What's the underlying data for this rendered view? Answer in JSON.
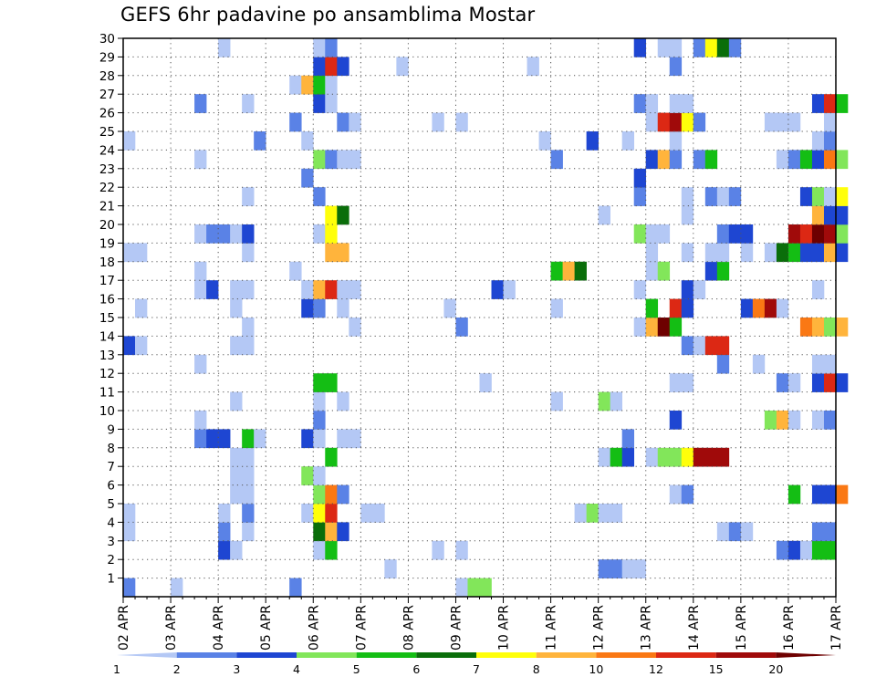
{
  "chart_data": {
    "type": "heatmap",
    "title": "GEFS 6hr padavine po ansamblima Mostar",
    "x": {
      "ticks": [
        "02 APR",
        "03 APR",
        "04 APR",
        "05 APR",
        "06 APR",
        "07 APR",
        "08 APR",
        "09 APR",
        "10 APR",
        "11 APR",
        "12 APR",
        "13 APR",
        "14 APR",
        "15 APR",
        "16 APR",
        "17 APR"
      ],
      "range": [
        "02 APR 00Z",
        "17 APR 00Z"
      ],
      "step": "6hr"
    },
    "y": {
      "ticks": [
        1,
        2,
        3,
        4,
        5,
        6,
        7,
        8,
        9,
        10,
        11,
        12,
        13,
        14,
        15,
        16,
        17,
        18,
        19,
        20,
        21,
        22,
        23,
        24,
        25,
        26,
        27,
        28,
        29,
        30
      ],
      "label": "",
      "range": [
        0,
        30
      ]
    },
    "grid": "dotted",
    "legend": {
      "placement": "bottom",
      "labels": [
        "1",
        "2",
        "3",
        "4",
        "5",
        "6",
        "7",
        "8",
        "10",
        "12",
        "15",
        "20"
      ],
      "colors": [
        "#b4c8f5",
        "#5a82e6",
        "#1e46d2",
        "#82e65a",
        "#14be14",
        "#0a6e0a",
        "#ffff0a",
        "#ffb43c",
        "#fa7814",
        "#dc2814",
        "#a00a0a",
        "#6e0000"
      ]
    },
    "cells": [
      [
        0,
        0,
        "#5a82e6"
      ],
      [
        4,
        0,
        "#b4c8f5"
      ],
      [
        14,
        0,
        "#b4c8f5"
      ],
      [
        14,
        0,
        "#5a82e6"
      ],
      [
        28,
        0,
        "#b4c8f5"
      ],
      [
        29,
        0,
        "#82e65a"
      ],
      [
        30,
        0,
        "#82e65a"
      ],
      [
        22,
        1,
        "#b4c8f5"
      ],
      [
        40,
        1,
        "#5a82e6"
      ],
      [
        41,
        1,
        "#5a82e6"
      ],
      [
        42,
        1,
        "#b4c8f5"
      ],
      [
        43,
        1,
        "#b4c8f5"
      ],
      [
        8,
        2,
        "#b4c8f5"
      ],
      [
        8,
        2,
        "#1e46d2"
      ],
      [
        9,
        2,
        "#b4c8f5"
      ],
      [
        16,
        2,
        "#b4c8f5"
      ],
      [
        17,
        2,
        "#14be14"
      ],
      [
        26,
        2,
        "#b4c8f5"
      ],
      [
        28,
        2,
        "#b4c8f5"
      ],
      [
        55,
        2,
        "#5a82e6"
      ],
      [
        56,
        2,
        "#1e46d2"
      ],
      [
        57,
        2,
        "#b4c8f5"
      ],
      [
        58,
        2,
        "#14be14"
      ],
      [
        59,
        2,
        "#14be14"
      ],
      [
        0,
        3,
        "#b4c8f5"
      ],
      [
        8,
        3,
        "#5a82e6"
      ],
      [
        10,
        3,
        "#b4c8f5"
      ],
      [
        16,
        3,
        "#0a6e0a"
      ],
      [
        17,
        3,
        "#ffb43c"
      ],
      [
        18,
        3,
        "#1e46d2"
      ],
      [
        50,
        3,
        "#b4c8f5"
      ],
      [
        51,
        3,
        "#5a82e6"
      ],
      [
        52,
        3,
        "#b4c8f5"
      ],
      [
        58,
        3,
        "#5a82e6"
      ],
      [
        59,
        3,
        "#5a82e6"
      ],
      [
        0,
        4,
        "#b4c8f5"
      ],
      [
        8,
        4,
        "#b4c8f5"
      ],
      [
        10,
        4,
        "#5a82e6"
      ],
      [
        15,
        4,
        "#b4c8f5"
      ],
      [
        16,
        4,
        "#ffff0a"
      ],
      [
        17,
        4,
        "#dc2814"
      ],
      [
        20,
        4,
        "#b4c8f5"
      ],
      [
        21,
        4,
        "#b4c8f5"
      ],
      [
        38,
        4,
        "#b4c8f5"
      ],
      [
        39,
        4,
        "#82e65a"
      ],
      [
        40,
        4,
        "#b4c8f5"
      ],
      [
        41,
        4,
        "#b4c8f5"
      ],
      [
        9,
        5,
        "#b4c8f5"
      ],
      [
        10,
        5,
        "#b4c8f5"
      ],
      [
        16,
        5,
        "#82e65a"
      ],
      [
        17,
        5,
        "#fa7814"
      ],
      [
        18,
        5,
        "#5a82e6"
      ],
      [
        46,
        5,
        "#b4c8f5"
      ],
      [
        47,
        5,
        "#5a82e6"
      ],
      [
        56,
        5,
        "#14be14"
      ],
      [
        58,
        5,
        "#1e46d2"
      ],
      [
        59,
        5,
        "#1e46d2"
      ],
      [
        60,
        5,
        "#fa7814"
      ],
      [
        9,
        6,
        "#b4c8f5"
      ],
      [
        10,
        6,
        "#b4c8f5"
      ],
      [
        15,
        6,
        "#82e65a"
      ],
      [
        16,
        6,
        "#b4c8f5"
      ],
      [
        9,
        7,
        "#b4c8f5"
      ],
      [
        10,
        7,
        "#b4c8f5"
      ],
      [
        17,
        7,
        "#14be14"
      ],
      [
        40,
        7,
        "#b4c8f5"
      ],
      [
        41,
        7,
        "#14be14"
      ],
      [
        42,
        7,
        "#1e46d2"
      ],
      [
        44,
        7,
        "#b4c8f5"
      ],
      [
        45,
        7,
        "#82e65a"
      ],
      [
        46,
        7,
        "#82e65a"
      ],
      [
        47,
        7,
        "#ffff0a"
      ],
      [
        48,
        7,
        "#a00a0a"
      ],
      [
        49,
        7,
        "#a00a0a"
      ],
      [
        50,
        7,
        "#a00a0a"
      ],
      [
        6,
        8,
        "#5a82e6"
      ],
      [
        7,
        8,
        "#1e46d2"
      ],
      [
        8,
        8,
        "#1e46d2"
      ],
      [
        10,
        8,
        "#14be14"
      ],
      [
        11,
        8,
        "#b4c8f5"
      ],
      [
        15,
        8,
        "#1e46d2"
      ],
      [
        16,
        8,
        "#b4c8f5"
      ],
      [
        18,
        8,
        "#b4c8f5"
      ],
      [
        19,
        8,
        "#b4c8f5"
      ],
      [
        42,
        8,
        "#5a82e6"
      ],
      [
        6,
        9,
        "#b4c8f5"
      ],
      [
        16,
        9,
        "#5a82e6"
      ],
      [
        46,
        9,
        "#1e46d2"
      ],
      [
        54,
        9,
        "#82e65a"
      ],
      [
        55,
        9,
        "#ffb43c"
      ],
      [
        56,
        9,
        "#b4c8f5"
      ],
      [
        58,
        9,
        "#b4c8f5"
      ],
      [
        59,
        9,
        "#5a82e6"
      ],
      [
        9,
        10,
        "#b4c8f5"
      ],
      [
        16,
        10,
        "#b4c8f5"
      ],
      [
        18,
        10,
        "#b4c8f5"
      ],
      [
        36,
        10,
        "#b4c8f5"
      ],
      [
        40,
        10,
        "#82e65a"
      ],
      [
        41,
        10,
        "#b4c8f5"
      ],
      [
        16,
        11,
        "#14be14"
      ],
      [
        17,
        11,
        "#14be14"
      ],
      [
        30,
        11,
        "#b4c8f5"
      ],
      [
        46,
        11,
        "#b4c8f5"
      ],
      [
        47,
        11,
        "#b4c8f5"
      ],
      [
        55,
        11,
        "#5a82e6"
      ],
      [
        56,
        11,
        "#b4c8f5"
      ],
      [
        58,
        11,
        "#1e46d2"
      ],
      [
        59,
        11,
        "#dc2814"
      ],
      [
        60,
        11,
        "#1e46d2"
      ],
      [
        6,
        12,
        "#b4c8f5"
      ],
      [
        50,
        12,
        "#5a82e6"
      ],
      [
        53,
        12,
        "#b4c8f5"
      ],
      [
        58,
        12,
        "#b4c8f5"
      ],
      [
        59,
        12,
        "#b4c8f5"
      ],
      [
        0,
        13,
        "#1e46d2"
      ],
      [
        1,
        13,
        "#b4c8f5"
      ],
      [
        9,
        13,
        "#b4c8f5"
      ],
      [
        10,
        13,
        "#b4c8f5"
      ],
      [
        47,
        13,
        "#5a82e6"
      ],
      [
        48,
        13,
        "#b4c8f5"
      ],
      [
        49,
        13,
        "#dc2814"
      ],
      [
        50,
        13,
        "#dc2814"
      ],
      [
        10,
        14,
        "#b4c8f5"
      ],
      [
        19,
        14,
        "#b4c8f5"
      ],
      [
        28,
        14,
        "#5a82e6"
      ],
      [
        43,
        14,
        "#b4c8f5"
      ],
      [
        44,
        14,
        "#ffb43c"
      ],
      [
        45,
        14,
        "#6e0000"
      ],
      [
        46,
        14,
        "#14be14"
      ],
      [
        57,
        14,
        "#fa7814"
      ],
      [
        58,
        14,
        "#ffb43c"
      ],
      [
        59,
        14,
        "#82e65a"
      ],
      [
        60,
        14,
        "#ffb43c"
      ],
      [
        1,
        15,
        "#b4c8f5"
      ],
      [
        9,
        15,
        "#b4c8f5"
      ],
      [
        15,
        15,
        "#1e46d2"
      ],
      [
        16,
        15,
        "#5a82e6"
      ],
      [
        18,
        15,
        "#b4c8f5"
      ],
      [
        27,
        15,
        "#b4c8f5"
      ],
      [
        36,
        15,
        "#b4c8f5"
      ],
      [
        44,
        15,
        "#14be14"
      ],
      [
        46,
        15,
        "#dc2814"
      ],
      [
        47,
        15,
        "#1e46d2"
      ],
      [
        52,
        15,
        "#1e46d2"
      ],
      [
        53,
        15,
        "#fa7814"
      ],
      [
        54,
        15,
        "#a00a0a"
      ],
      [
        55,
        15,
        "#b4c8f5"
      ],
      [
        6,
        16,
        "#b4c8f5"
      ],
      [
        7,
        16,
        "#1e46d2"
      ],
      [
        9,
        16,
        "#b4c8f5"
      ],
      [
        10,
        16,
        "#b4c8f5"
      ],
      [
        15,
        16,
        "#b4c8f5"
      ],
      [
        16,
        16,
        "#ffb43c"
      ],
      [
        17,
        16,
        "#dc2814"
      ],
      [
        18,
        16,
        "#b4c8f5"
      ],
      [
        19,
        16,
        "#b4c8f5"
      ],
      [
        31,
        16,
        "#1e46d2"
      ],
      [
        32,
        16,
        "#b4c8f5"
      ],
      [
        43,
        16,
        "#b4c8f5"
      ],
      [
        47,
        16,
        "#1e46d2"
      ],
      [
        48,
        16,
        "#b4c8f5"
      ],
      [
        58,
        16,
        "#b4c8f5"
      ],
      [
        6,
        17,
        "#b4c8f5"
      ],
      [
        14,
        17,
        "#b4c8f5"
      ],
      [
        36,
        17,
        "#14be14"
      ],
      [
        37,
        17,
        "#ffb43c"
      ],
      [
        38,
        17,
        "#0a6e0a"
      ],
      [
        44,
        17,
        "#b4c8f5"
      ],
      [
        45,
        17,
        "#82e65a"
      ],
      [
        49,
        17,
        "#1e46d2"
      ],
      [
        50,
        17,
        "#14be14"
      ],
      [
        0,
        18,
        "#b4c8f5"
      ],
      [
        1,
        18,
        "#b4c8f5"
      ],
      [
        10,
        18,
        "#b4c8f5"
      ],
      [
        17,
        18,
        "#ffb43c"
      ],
      [
        18,
        18,
        "#ffb43c"
      ],
      [
        44,
        18,
        "#b4c8f5"
      ],
      [
        47,
        18,
        "#b4c8f5"
      ],
      [
        49,
        18,
        "#b4c8f5"
      ],
      [
        50,
        18,
        "#b4c8f5"
      ],
      [
        52,
        18,
        "#b4c8f5"
      ],
      [
        54,
        18,
        "#b4c8f5"
      ],
      [
        55,
        18,
        "#0a6e0a"
      ],
      [
        56,
        18,
        "#14be14"
      ],
      [
        57,
        18,
        "#1e46d2"
      ],
      [
        58,
        18,
        "#1e46d2"
      ],
      [
        59,
        18,
        "#ffb43c"
      ],
      [
        60,
        18,
        "#1e46d2"
      ],
      [
        6,
        19,
        "#b4c8f5"
      ],
      [
        7,
        19,
        "#5a82e6"
      ],
      [
        8,
        19,
        "#5a82e6"
      ],
      [
        9,
        19,
        "#b4c8f5"
      ],
      [
        10,
        19,
        "#1e46d2"
      ],
      [
        16,
        19,
        "#b4c8f5"
      ],
      [
        17,
        19,
        "#ffff0a"
      ],
      [
        43,
        19,
        "#82e65a"
      ],
      [
        44,
        19,
        "#b4c8f5"
      ],
      [
        45,
        19,
        "#b4c8f5"
      ],
      [
        50,
        19,
        "#5a82e6"
      ],
      [
        51,
        19,
        "#1e46d2"
      ],
      [
        52,
        19,
        "#1e46d2"
      ],
      [
        56,
        19,
        "#a00a0a"
      ],
      [
        57,
        19,
        "#dc2814"
      ],
      [
        58,
        19,
        "#6e0000"
      ],
      [
        59,
        19,
        "#a00a0a"
      ],
      [
        60,
        19,
        "#82e65a"
      ],
      [
        17,
        20,
        "#ffff0a"
      ],
      [
        18,
        20,
        "#0a6e0a"
      ],
      [
        40,
        20,
        "#b4c8f5"
      ],
      [
        47,
        20,
        "#b4c8f5"
      ],
      [
        58,
        20,
        "#ffb43c"
      ],
      [
        59,
        20,
        "#1e46d2"
      ],
      [
        60,
        20,
        "#1e46d2"
      ],
      [
        10,
        21,
        "#b4c8f5"
      ],
      [
        16,
        21,
        "#5a82e6"
      ],
      [
        43,
        21,
        "#5a82e6"
      ],
      [
        47,
        21,
        "#b4c8f5"
      ],
      [
        49,
        21,
        "#5a82e6"
      ],
      [
        50,
        21,
        "#b4c8f5"
      ],
      [
        51,
        21,
        "#5a82e6"
      ],
      [
        57,
        21,
        "#1e46d2"
      ],
      [
        58,
        21,
        "#82e65a"
      ],
      [
        59,
        21,
        "#b4c8f5"
      ],
      [
        60,
        21,
        "#ffff0a"
      ],
      [
        15,
        22,
        "#5a82e6"
      ],
      [
        43,
        22,
        "#1e46d2"
      ],
      [
        6,
        23,
        "#b4c8f5"
      ],
      [
        16,
        23,
        "#82e65a"
      ],
      [
        17,
        23,
        "#5a82e6"
      ],
      [
        18,
        23,
        "#b4c8f5"
      ],
      [
        19,
        23,
        "#b4c8f5"
      ],
      [
        36,
        23,
        "#5a82e6"
      ],
      [
        44,
        23,
        "#1e46d2"
      ],
      [
        45,
        23,
        "#ffb43c"
      ],
      [
        46,
        23,
        "#5a82e6"
      ],
      [
        48,
        23,
        "#5a82e6"
      ],
      [
        49,
        23,
        "#14be14"
      ],
      [
        55,
        23,
        "#b4c8f5"
      ],
      [
        56,
        23,
        "#5a82e6"
      ],
      [
        57,
        23,
        "#14be14"
      ],
      [
        58,
        23,
        "#1e46d2"
      ],
      [
        59,
        23,
        "#fa7814"
      ],
      [
        60,
        23,
        "#82e65a"
      ],
      [
        0,
        24,
        "#b4c8f5"
      ],
      [
        11,
        24,
        "#5a82e6"
      ],
      [
        15,
        24,
        "#b4c8f5"
      ],
      [
        35,
        24,
        "#b4c8f5"
      ],
      [
        39,
        24,
        "#1e46d2"
      ],
      [
        42,
        24,
        "#b4c8f5"
      ],
      [
        46,
        24,
        "#b4c8f5"
      ],
      [
        58,
        24,
        "#b4c8f5"
      ],
      [
        59,
        24,
        "#5a82e6"
      ],
      [
        14,
        25,
        "#5a82e6"
      ],
      [
        18,
        25,
        "#5a82e6"
      ],
      [
        19,
        25,
        "#b4c8f5"
      ],
      [
        26,
        25,
        "#b4c8f5"
      ],
      [
        28,
        25,
        "#b4c8f5"
      ],
      [
        44,
        25,
        "#b4c8f5"
      ],
      [
        45,
        25,
        "#dc2814"
      ],
      [
        46,
        25,
        "#a00a0a"
      ],
      [
        47,
        25,
        "#ffff0a"
      ],
      [
        48,
        25,
        "#5a82e6"
      ],
      [
        54,
        25,
        "#b4c8f5"
      ],
      [
        55,
        25,
        "#b4c8f5"
      ],
      [
        56,
        25,
        "#b4c8f5"
      ],
      [
        59,
        25,
        "#b4c8f5"
      ],
      [
        6,
        26,
        "#5a82e6"
      ],
      [
        10,
        26,
        "#b4c8f5"
      ],
      [
        16,
        26,
        "#1e46d2"
      ],
      [
        17,
        26,
        "#b4c8f5"
      ],
      [
        43,
        26,
        "#5a82e6"
      ],
      [
        44,
        26,
        "#b4c8f5"
      ],
      [
        46,
        26,
        "#b4c8f5"
      ],
      [
        47,
        26,
        "#b4c8f5"
      ],
      [
        58,
        26,
        "#1e46d2"
      ],
      [
        59,
        26,
        "#dc2814"
      ],
      [
        60,
        26,
        "#14be14"
      ],
      [
        14,
        27,
        "#b4c8f5"
      ],
      [
        15,
        27,
        "#ffb43c"
      ],
      [
        16,
        27,
        "#14be14"
      ],
      [
        17,
        27,
        "#b4c8f5"
      ],
      [
        16,
        28,
        "#1e46d2"
      ],
      [
        17,
        28,
        "#dc2814"
      ],
      [
        18,
        28,
        "#1e46d2"
      ],
      [
        23,
        28,
        "#b4c8f5"
      ],
      [
        34,
        28,
        "#b4c8f5"
      ],
      [
        46,
        28,
        "#5a82e6"
      ],
      [
        8,
        29,
        "#b4c8f5"
      ],
      [
        16,
        29,
        "#b4c8f5"
      ],
      [
        17,
        29,
        "#5a82e6"
      ],
      [
        43,
        29,
        "#1e46d2"
      ],
      [
        45,
        29,
        "#b4c8f5"
      ],
      [
        46,
        29,
        "#b4c8f5"
      ],
      [
        48,
        29,
        "#5a82e6"
      ],
      [
        49,
        29,
        "#ffff0a"
      ],
      [
        50,
        29,
        "#0a6e0a"
      ],
      [
        51,
        29,
        "#5a82e6"
      ]
    ]
  }
}
